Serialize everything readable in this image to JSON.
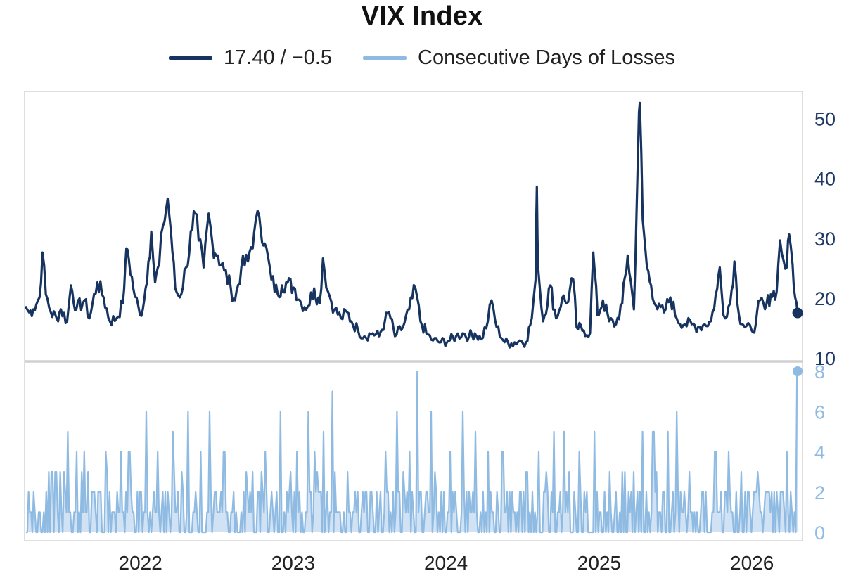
{
  "chart_data": [
    {
      "type": "line",
      "title": "VIX Index",
      "legend_placement": "top-center",
      "series_name": "17.40 / −0.5",
      "series_color": "#17335f",
      "ylim": [
        10,
        55
      ],
      "yticks": [
        10,
        20,
        30,
        40,
        50
      ],
      "ytick_labels": [
        "10",
        "20",
        "30",
        "40",
        "50"
      ],
      "y_axis_side": "right",
      "xlim": [
        "2021-04-01",
        "2026-04-30"
      ],
      "xticks": [
        "2022-01-01",
        "2023-01-01",
        "2024-01-01",
        "2025-01-01",
        "2026-01-01"
      ],
      "xtick_labels": [
        "2022",
        "2023",
        "2024",
        "2025",
        "2026"
      ],
      "last_point": {
        "date": "2026-04-20",
        "value": 17.4
      },
      "points": [
        [
          "2021-04-01",
          18.5
        ],
        [
          "2021-04-10",
          17.5
        ],
        [
          "2021-04-20",
          18.0
        ],
        [
          "2021-05-05",
          20.0
        ],
        [
          "2021-05-12",
          27.5
        ],
        [
          "2021-05-20",
          20.5
        ],
        [
          "2021-06-01",
          17.5
        ],
        [
          "2021-06-15",
          16.5
        ],
        [
          "2021-06-25",
          18.0
        ],
        [
          "2021-07-10",
          16.0
        ],
        [
          "2021-07-19",
          22.0
        ],
        [
          "2021-08-01",
          18.0
        ],
        [
          "2021-08-20",
          19.5
        ],
        [
          "2021-09-01",
          16.5
        ],
        [
          "2021-09-20",
          22.5
        ],
        [
          "2021-10-05",
          20.0
        ],
        [
          "2021-10-20",
          16.0
        ],
        [
          "2021-11-05",
          16.5
        ],
        [
          "2021-11-20",
          19.0
        ],
        [
          "2021-11-26",
          25.5
        ],
        [
          "2021-12-01",
          28.0
        ],
        [
          "2021-12-15",
          21.5
        ],
        [
          "2021-12-31",
          17.0
        ],
        [
          "2022-01-10",
          19.5
        ],
        [
          "2022-01-20",
          26.0
        ],
        [
          "2022-01-27",
          31.0
        ],
        [
          "2022-02-05",
          22.5
        ],
        [
          "2022-02-15",
          25.5
        ],
        [
          "2022-02-24",
          32.0
        ],
        [
          "2022-03-07",
          36.5
        ],
        [
          "2022-03-15",
          31.0
        ],
        [
          "2022-03-25",
          21.5
        ],
        [
          "2022-04-05",
          20.0
        ],
        [
          "2022-04-20",
          25.0
        ],
        [
          "2022-05-05",
          31.5
        ],
        [
          "2022-05-12",
          34.0
        ],
        [
          "2022-05-20",
          29.5
        ],
        [
          "2022-06-01",
          25.0
        ],
        [
          "2022-06-13",
          34.0
        ],
        [
          "2022-06-22",
          29.0
        ],
        [
          "2022-07-05",
          27.0
        ],
        [
          "2022-07-20",
          24.5
        ],
        [
          "2022-08-05",
          21.5
        ],
        [
          "2022-08-15",
          19.5
        ],
        [
          "2022-08-30",
          25.0
        ],
        [
          "2022-09-15",
          26.0
        ],
        [
          "2022-09-30",
          31.0
        ],
        [
          "2022-10-12",
          33.5
        ],
        [
          "2022-10-25",
          29.0
        ],
        [
          "2022-11-10",
          23.0
        ],
        [
          "2022-11-25",
          20.5
        ],
        [
          "2022-12-05",
          22.0
        ],
        [
          "2022-12-15",
          22.5
        ],
        [
          "2023-01-05",
          21.5
        ],
        [
          "2023-01-20",
          19.0
        ],
        [
          "2023-02-05",
          18.5
        ],
        [
          "2023-02-20",
          21.5
        ],
        [
          "2023-03-05",
          19.0
        ],
        [
          "2023-03-13",
          26.5
        ],
        [
          "2023-03-25",
          21.0
        ],
        [
          "2023-04-10",
          18.0
        ],
        [
          "2023-04-25",
          16.5
        ],
        [
          "2023-05-10",
          17.5
        ],
        [
          "2023-05-20",
          16.0
        ],
        [
          "2023-06-05",
          14.5
        ],
        [
          "2023-06-20",
          13.5
        ],
        [
          "2023-07-10",
          14.0
        ],
        [
          "2023-07-25",
          13.5
        ],
        [
          "2023-08-08",
          16.0
        ],
        [
          "2023-08-18",
          17.5
        ],
        [
          "2023-09-01",
          13.5
        ],
        [
          "2023-09-20",
          15.0
        ],
        [
          "2023-10-05",
          18.0
        ],
        [
          "2023-10-20",
          21.5
        ],
        [
          "2023-11-01",
          16.0
        ],
        [
          "2023-11-15",
          14.0
        ],
        [
          "2023-12-01",
          12.8
        ],
        [
          "2023-12-20",
          12.5
        ],
        [
          "2024-01-10",
          12.8
        ],
        [
          "2024-01-25",
          13.5
        ],
        [
          "2024-02-10",
          14.0
        ],
        [
          "2024-02-25",
          13.5
        ],
        [
          "2024-03-10",
          14.0
        ],
        [
          "2024-03-25",
          13.0
        ],
        [
          "2024-04-10",
          16.0
        ],
        [
          "2024-04-19",
          19.5
        ],
        [
          "2024-05-01",
          15.0
        ],
        [
          "2024-05-20",
          12.5
        ],
        [
          "2024-06-05",
          12.3
        ],
        [
          "2024-06-25",
          12.8
        ],
        [
          "2024-07-10",
          12.5
        ],
        [
          "2024-07-24",
          16.5
        ],
        [
          "2024-08-02",
          23.0
        ],
        [
          "2024-08-05",
          38.5
        ],
        [
          "2024-08-08",
          25.0
        ],
        [
          "2024-08-20",
          16.0
        ],
        [
          "2024-09-06",
          22.0
        ],
        [
          "2024-09-20",
          16.5
        ],
        [
          "2024-10-05",
          20.0
        ],
        [
          "2024-10-15",
          19.0
        ],
        [
          "2024-10-31",
          23.0
        ],
        [
          "2024-11-08",
          15.0
        ],
        [
          "2024-11-25",
          14.5
        ],
        [
          "2024-12-10",
          14.0
        ],
        [
          "2024-12-18",
          27.5
        ],
        [
          "2024-12-28",
          17.0
        ],
        [
          "2025-01-10",
          19.5
        ],
        [
          "2025-01-25",
          16.0
        ],
        [
          "2025-02-10",
          15.5
        ],
        [
          "2025-02-25",
          19.0
        ],
        [
          "2025-03-10",
          27.0
        ],
        [
          "2025-03-25",
          18.0
        ],
        [
          "2025-04-04",
          45.0
        ],
        [
          "2025-04-08",
          52.5
        ],
        [
          "2025-04-15",
          33.0
        ],
        [
          "2025-04-25",
          25.0
        ],
        [
          "2025-05-05",
          22.0
        ],
        [
          "2025-05-20",
          18.0
        ],
        [
          "2025-06-05",
          17.5
        ],
        [
          "2025-06-20",
          20.0
        ],
        [
          "2025-07-05",
          16.5
        ],
        [
          "2025-07-25",
          15.5
        ],
        [
          "2025-08-10",
          15.5
        ],
        [
          "2025-08-25",
          15.0
        ],
        [
          "2025-09-10",
          15.5
        ],
        [
          "2025-09-25",
          16.0
        ],
        [
          "2025-10-10",
          21.5
        ],
        [
          "2025-10-16",
          25.0
        ],
        [
          "2025-10-25",
          17.0
        ],
        [
          "2025-11-10",
          19.0
        ],
        [
          "2025-11-20",
          26.0
        ],
        [
          "2025-12-01",
          17.0
        ],
        [
          "2025-12-15",
          15.0
        ],
        [
          "2025-12-31",
          14.5
        ],
        [
          "2026-01-10",
          15.5
        ],
        [
          "2026-01-20",
          19.5
        ],
        [
          "2026-02-01",
          18.0
        ],
        [
          "2026-02-15",
          20.5
        ],
        [
          "2026-03-01",
          21.0
        ],
        [
          "2026-03-09",
          29.5
        ],
        [
          "2026-03-18",
          26.0
        ],
        [
          "2026-03-25",
          25.0
        ],
        [
          "2026-03-31",
          30.5
        ],
        [
          "2026-04-08",
          25.5
        ],
        [
          "2026-04-14",
          20.0
        ],
        [
          "2026-04-20",
          17.4
        ]
      ]
    },
    {
      "type": "area",
      "series_name": "Consecutive Days of Losses",
      "series_color": "#8fbbe3",
      "ylim": [
        0,
        8
      ],
      "yticks": [
        0,
        2,
        4,
        6,
        8
      ],
      "ytick_labels": [
        "0",
        "2",
        "4",
        "6",
        "8"
      ],
      "y_axis_side": "right",
      "last_point": {
        "date": "2026-04-20",
        "value": 8
      },
      "peaks": [
        [
          "2021-04-20",
          2
        ],
        [
          "2021-06-01",
          3
        ],
        [
          "2021-07-10",
          5
        ],
        [
          "2021-08-01",
          4
        ],
        [
          "2021-08-20",
          4
        ],
        [
          "2021-10-10",
          4
        ],
        [
          "2021-11-15",
          4
        ],
        [
          "2021-12-05",
          4
        ],
        [
          "2022-01-15",
          6
        ],
        [
          "2022-02-10",
          4
        ],
        [
          "2022-03-20",
          5
        ],
        [
          "2022-04-25",
          6
        ],
        [
          "2022-05-25",
          4
        ],
        [
          "2022-06-15",
          6
        ],
        [
          "2022-07-20",
          4
        ],
        [
          "2022-09-10",
          3
        ],
        [
          "2022-10-25",
          4
        ],
        [
          "2022-12-01",
          6
        ],
        [
          "2023-01-10",
          4
        ],
        [
          "2023-02-05",
          6
        ],
        [
          "2023-02-20",
          4
        ],
        [
          "2023-03-15",
          5
        ],
        [
          "2023-04-05",
          7
        ],
        [
          "2023-05-10",
          3
        ],
        [
          "2023-06-15",
          2
        ],
        [
          "2023-08-10",
          4
        ],
        [
          "2023-09-05",
          6
        ],
        [
          "2023-10-05",
          4
        ],
        [
          "2023-10-25",
          8
        ],
        [
          "2023-11-25",
          6
        ],
        [
          "2024-01-10",
          4
        ],
        [
          "2024-02-10",
          6
        ],
        [
          "2024-03-10",
          5
        ],
        [
          "2024-04-10",
          4
        ],
        [
          "2024-05-15",
          4
        ],
        [
          "2024-07-10",
          3
        ],
        [
          "2024-08-10",
          4
        ],
        [
          "2024-09-15",
          5
        ],
        [
          "2024-10-10",
          5
        ],
        [
          "2024-11-15",
          4
        ],
        [
          "2024-12-20",
          5
        ],
        [
          "2025-01-25",
          3
        ],
        [
          "2025-02-25",
          3
        ],
        [
          "2025-03-25",
          3
        ],
        [
          "2025-04-15",
          5
        ],
        [
          "2025-05-10",
          5
        ],
        [
          "2025-06-15",
          5
        ],
        [
          "2025-07-05",
          6
        ],
        [
          "2025-08-05",
          3
        ],
        [
          "2025-09-05",
          2
        ],
        [
          "2025-10-05",
          4
        ],
        [
          "2025-11-05",
          4
        ],
        [
          "2025-12-05",
          3
        ],
        [
          "2026-01-05",
          2
        ],
        [
          "2026-02-01",
          2
        ],
        [
          "2026-03-01",
          2
        ],
        [
          "2026-03-25",
          4
        ],
        [
          "2026-04-20",
          8
        ]
      ]
    }
  ]
}
